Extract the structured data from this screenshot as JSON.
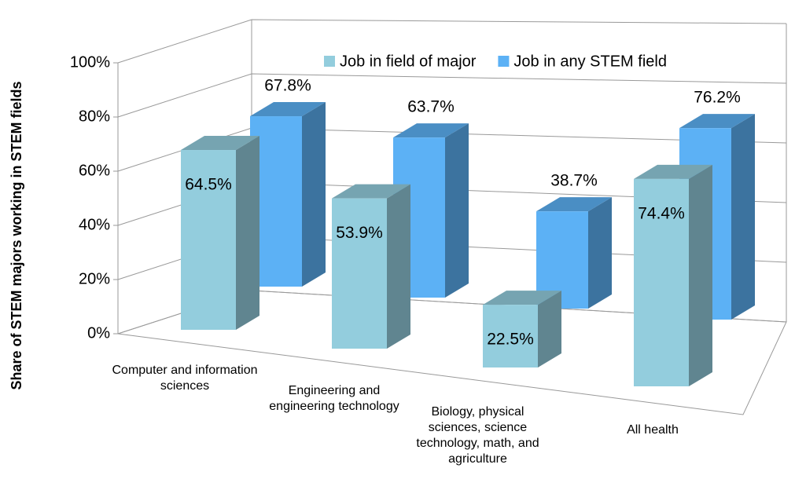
{
  "chart_data": {
    "type": "bar3d",
    "y_label": "Share of STEM majors working in STEM fields",
    "categories": [
      "Computer and information sciences",
      "Engineering and engineering technology",
      "Biology, physical sciences, science technology, math, and agriculture",
      "All health"
    ],
    "series": [
      {
        "name": "Job in field of major",
        "color": "#93cddd",
        "values": [
          64.5,
          53.9,
          22.5,
          74.4
        ],
        "value_labels": [
          "64.5%",
          "53.9%",
          "22.5%",
          "74.4%"
        ]
      },
      {
        "name": "Job in any STEM field",
        "color": "#5cb1f5",
        "values": [
          67.8,
          63.7,
          38.7,
          76.2
        ],
        "value_labels": [
          "67.8%",
          "63.7%",
          "38.7%",
          "76.2%"
        ]
      }
    ],
    "ylim": [
      0,
      100
    ],
    "yticks": [
      {
        "value": 0,
        "label": "0%"
      },
      {
        "value": 20,
        "label": "20%"
      },
      {
        "value": 40,
        "label": "40%"
      },
      {
        "value": 60,
        "label": "60%"
      },
      {
        "value": 80,
        "label": "80%"
      },
      {
        "value": 100,
        "label": "100%"
      }
    ],
    "grid": true,
    "legend": "top-right"
  }
}
